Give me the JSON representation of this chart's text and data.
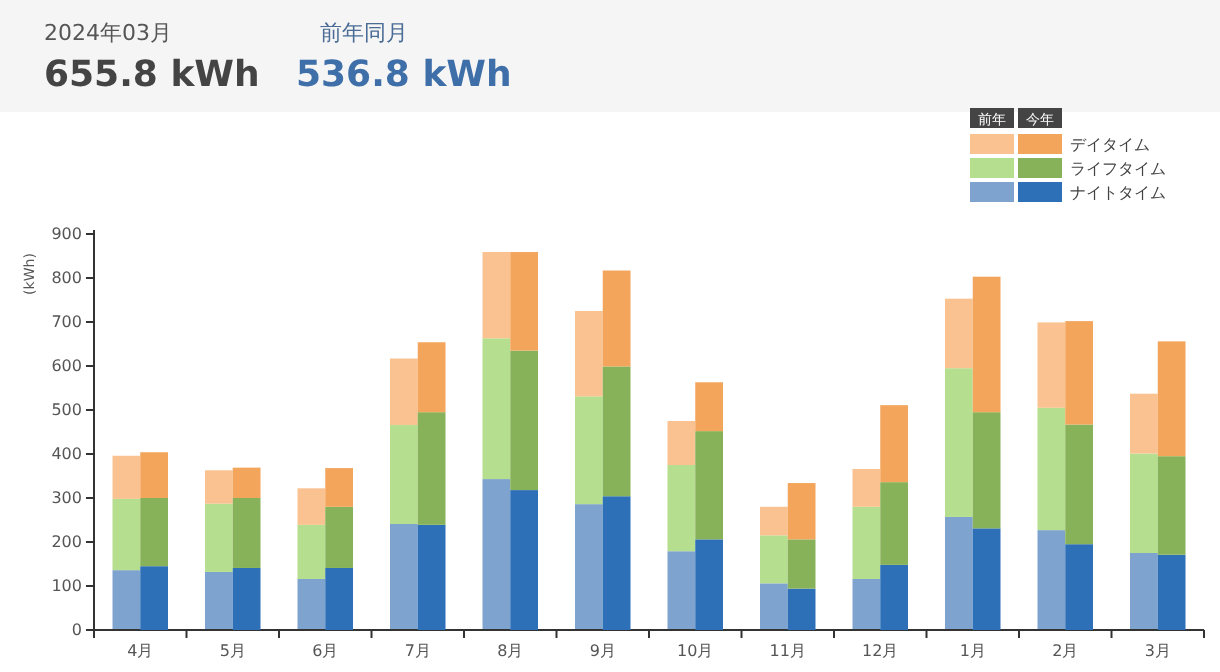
{
  "chart_data": [
    {
      "type": "bar",
      "stacked": true,
      "ylabel": "(kWh)",
      "legend_title": "前年",
      "annotations": [
        "2024年03月",
        "655.8 kWh",
        "前年同月",
        "536.8 kWh"
      ],
      "categories": [
        "4月",
        "5月",
        "6月",
        "7月",
        "8月",
        "9月",
        "10月",
        "11月",
        "12月",
        "1月",
        "2月",
        "3月"
      ],
      "series": [
        {
          "color": "#7ea3cf",
          "values": [
            136,
            132,
            116,
            241,
            343,
            286,
            179,
            106,
            116,
            257,
            227,
            175
          ]
        },
        {
          "color": "#b5de8e",
          "values": [
            162,
            155,
            123,
            225,
            320,
            245,
            196,
            109,
            164,
            338,
            278,
            226
          ]
        },
        {
          "color": "#f9c290",
          "values": [
            98,
            76,
            83,
            151,
            196,
            194,
            100,
            65,
            86,
            158,
            194,
            136
          ]
        }
      ],
      "ylim": [
        0,
        900
      ],
      "yticks": [
        0,
        100,
        200,
        300,
        400,
        500,
        600,
        700,
        800,
        900
      ]
    },
    {
      "type": "bar",
      "stacked": true,
      "legend_title": "今年",
      "tick_labels": false,
      "series": [
        {
          "name": "ナイトタイム",
          "color": "#2e70b8",
          "values": [
            145,
            141,
            141,
            239,
            318,
            304,
            206,
            94,
            148,
            231,
            195,
            171
          ]
        },
        {
          "name": "ライフタイム",
          "color": "#88b25a",
          "values": [
            155,
            159,
            139,
            256,
            317,
            295,
            246,
            112,
            188,
            264,
            272,
            224
          ]
        },
        {
          "name": "デイタイム",
          "color": "#f3a55c",
          "values": [
            104,
            69,
            88,
            159,
            224,
            218,
            111,
            128,
            175,
            308,
            235,
            261
          ]
        }
      ],
      "ylim": [
        0,
        900
      ],
      "yticks": [
        0,
        100,
        200,
        300,
        400,
        500,
        600,
        700,
        800,
        900
      ],
      "legend": "top right"
    }
  ]
}
